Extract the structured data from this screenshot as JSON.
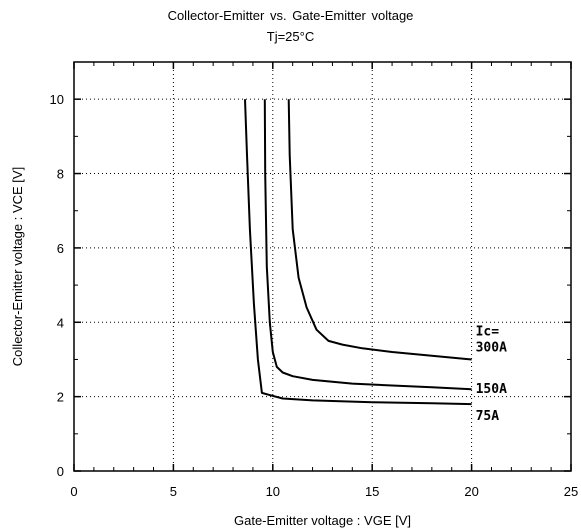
{
  "chart_data": {
    "type": "line",
    "title": "Collector-Emitter  vs.  Gate-Emitter  voltage",
    "subtitle": "Tj=25°C",
    "xlabel": "Gate-Emitter  voltage  :  VGE [V]",
    "ylabel": "Collector-Emitter  voltage  :  VCE [V]",
    "xlim": [
      0,
      25
    ],
    "ylim": [
      0,
      11
    ],
    "xticks": [
      0,
      5,
      10,
      15,
      20,
      25
    ],
    "yticks": [
      0,
      2,
      4,
      6,
      8,
      10
    ],
    "grid": true,
    "legend_title": "Ic=",
    "series": [
      {
        "name": "300A",
        "x": [
          10.8,
          10.85,
          11.0,
          11.3,
          11.7,
          12.2,
          12.8,
          13.5,
          14.5,
          16,
          18,
          20
        ],
        "y": [
          10,
          8.5,
          6.5,
          5.2,
          4.4,
          3.8,
          3.5,
          3.4,
          3.3,
          3.2,
          3.1,
          3.0
        ]
      },
      {
        "name": "150A",
        "x": [
          9.6,
          9.62,
          9.7,
          9.85,
          10.0,
          10.2,
          10.5,
          11,
          12,
          14,
          16,
          18,
          20
        ],
        "y": [
          10,
          8.0,
          5.5,
          4.0,
          3.2,
          2.8,
          2.65,
          2.55,
          2.45,
          2.35,
          2.3,
          2.25,
          2.2
        ]
      },
      {
        "name": "75A",
        "x": [
          8.6,
          8.7,
          8.85,
          9.05,
          9.25,
          9.45,
          9.8,
          10.5,
          12,
          15,
          18,
          20
        ],
        "y": [
          10,
          8.5,
          6.5,
          4.5,
          3.0,
          2.1,
          2.05,
          1.95,
          1.9,
          1.85,
          1.82,
          1.8
        ]
      }
    ]
  }
}
